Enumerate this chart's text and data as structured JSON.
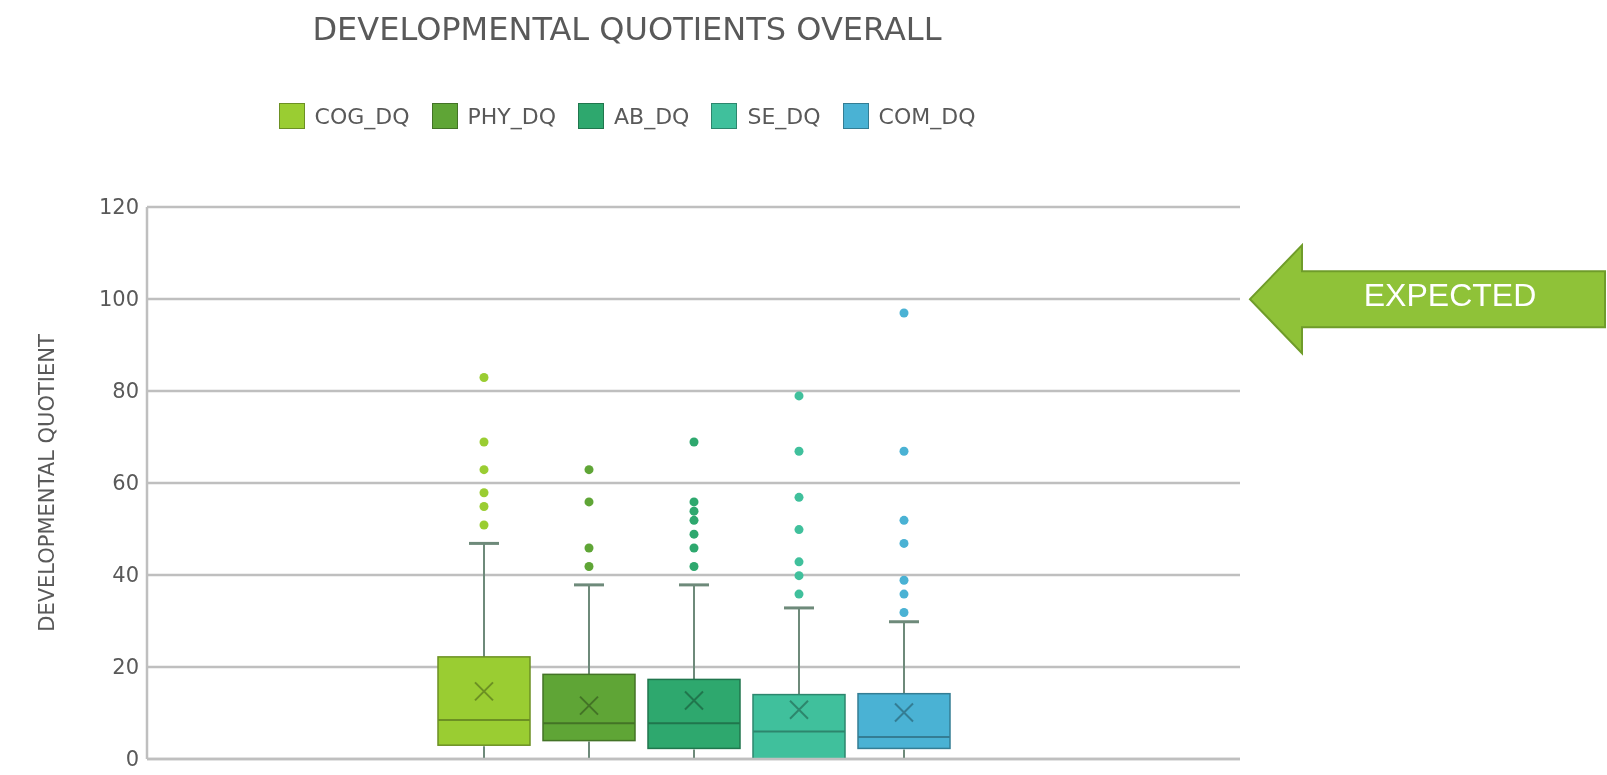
{
  "chart_data": {
    "type": "box",
    "title": "DEVELOPMENTAL QUOTIENTS OVERALL",
    "ylabel": "DEVELOPMENTAL  QUOTIENT",
    "categories": [
      null
    ],
    "series": [
      {
        "name": "COG_DQ",
        "color": "#9acd32",
        "boxes": [
          {
            "low": 0,
            "q1": 3,
            "median": 8.7,
            "q3": 22.2,
            "high": 47,
            "mean": 14.9,
            "outliers": [
              51,
              55,
              58,
              63,
              69,
              83
            ]
          }
        ]
      },
      {
        "name": "PHY_DQ",
        "color": "#5fa536",
        "boxes": [
          {
            "low": 0,
            "q1": 4,
            "median": 8,
            "q3": 18.4,
            "high": 38,
            "mean": 11.8,
            "outliers": [
              42,
              46,
              56,
              63
            ]
          }
        ]
      },
      {
        "name": "AB_DQ",
        "color": "#2ea86e",
        "boxes": [
          {
            "low": 0,
            "q1": 2.3,
            "median": 8,
            "q3": 17.3,
            "high": 38,
            "mean": 12.9,
            "outliers": [
              42,
              46,
              49,
              52,
              54,
              56,
              69
            ]
          }
        ]
      },
      {
        "name": "SE_DQ",
        "color": "#40c09c",
        "boxes": [
          {
            "low": 0,
            "q1": 0,
            "median": 6.2,
            "q3": 14,
            "high": 33,
            "mean": 10.9,
            "outliers": [
              36,
              40,
              43,
              50,
              57,
              67,
              79
            ]
          }
        ]
      },
      {
        "name": "COM_DQ",
        "color": "#4ab2d4",
        "boxes": [
          {
            "low": 0,
            "q1": 2.3,
            "median": 5,
            "q3": 14.2,
            "high": 30,
            "mean": 10.3,
            "outliers": [
              32,
              36,
              39,
              47,
              52,
              67,
              97
            ]
          }
        ]
      }
    ],
    "ylim": [
      0,
      120
    ],
    "yticks": [
      0,
      20,
      40,
      60,
      80,
      100,
      120
    ],
    "grid": "y",
    "legend": "top",
    "marker": "circle",
    "annotations": [
      "EXPECTED"
    ]
  }
}
